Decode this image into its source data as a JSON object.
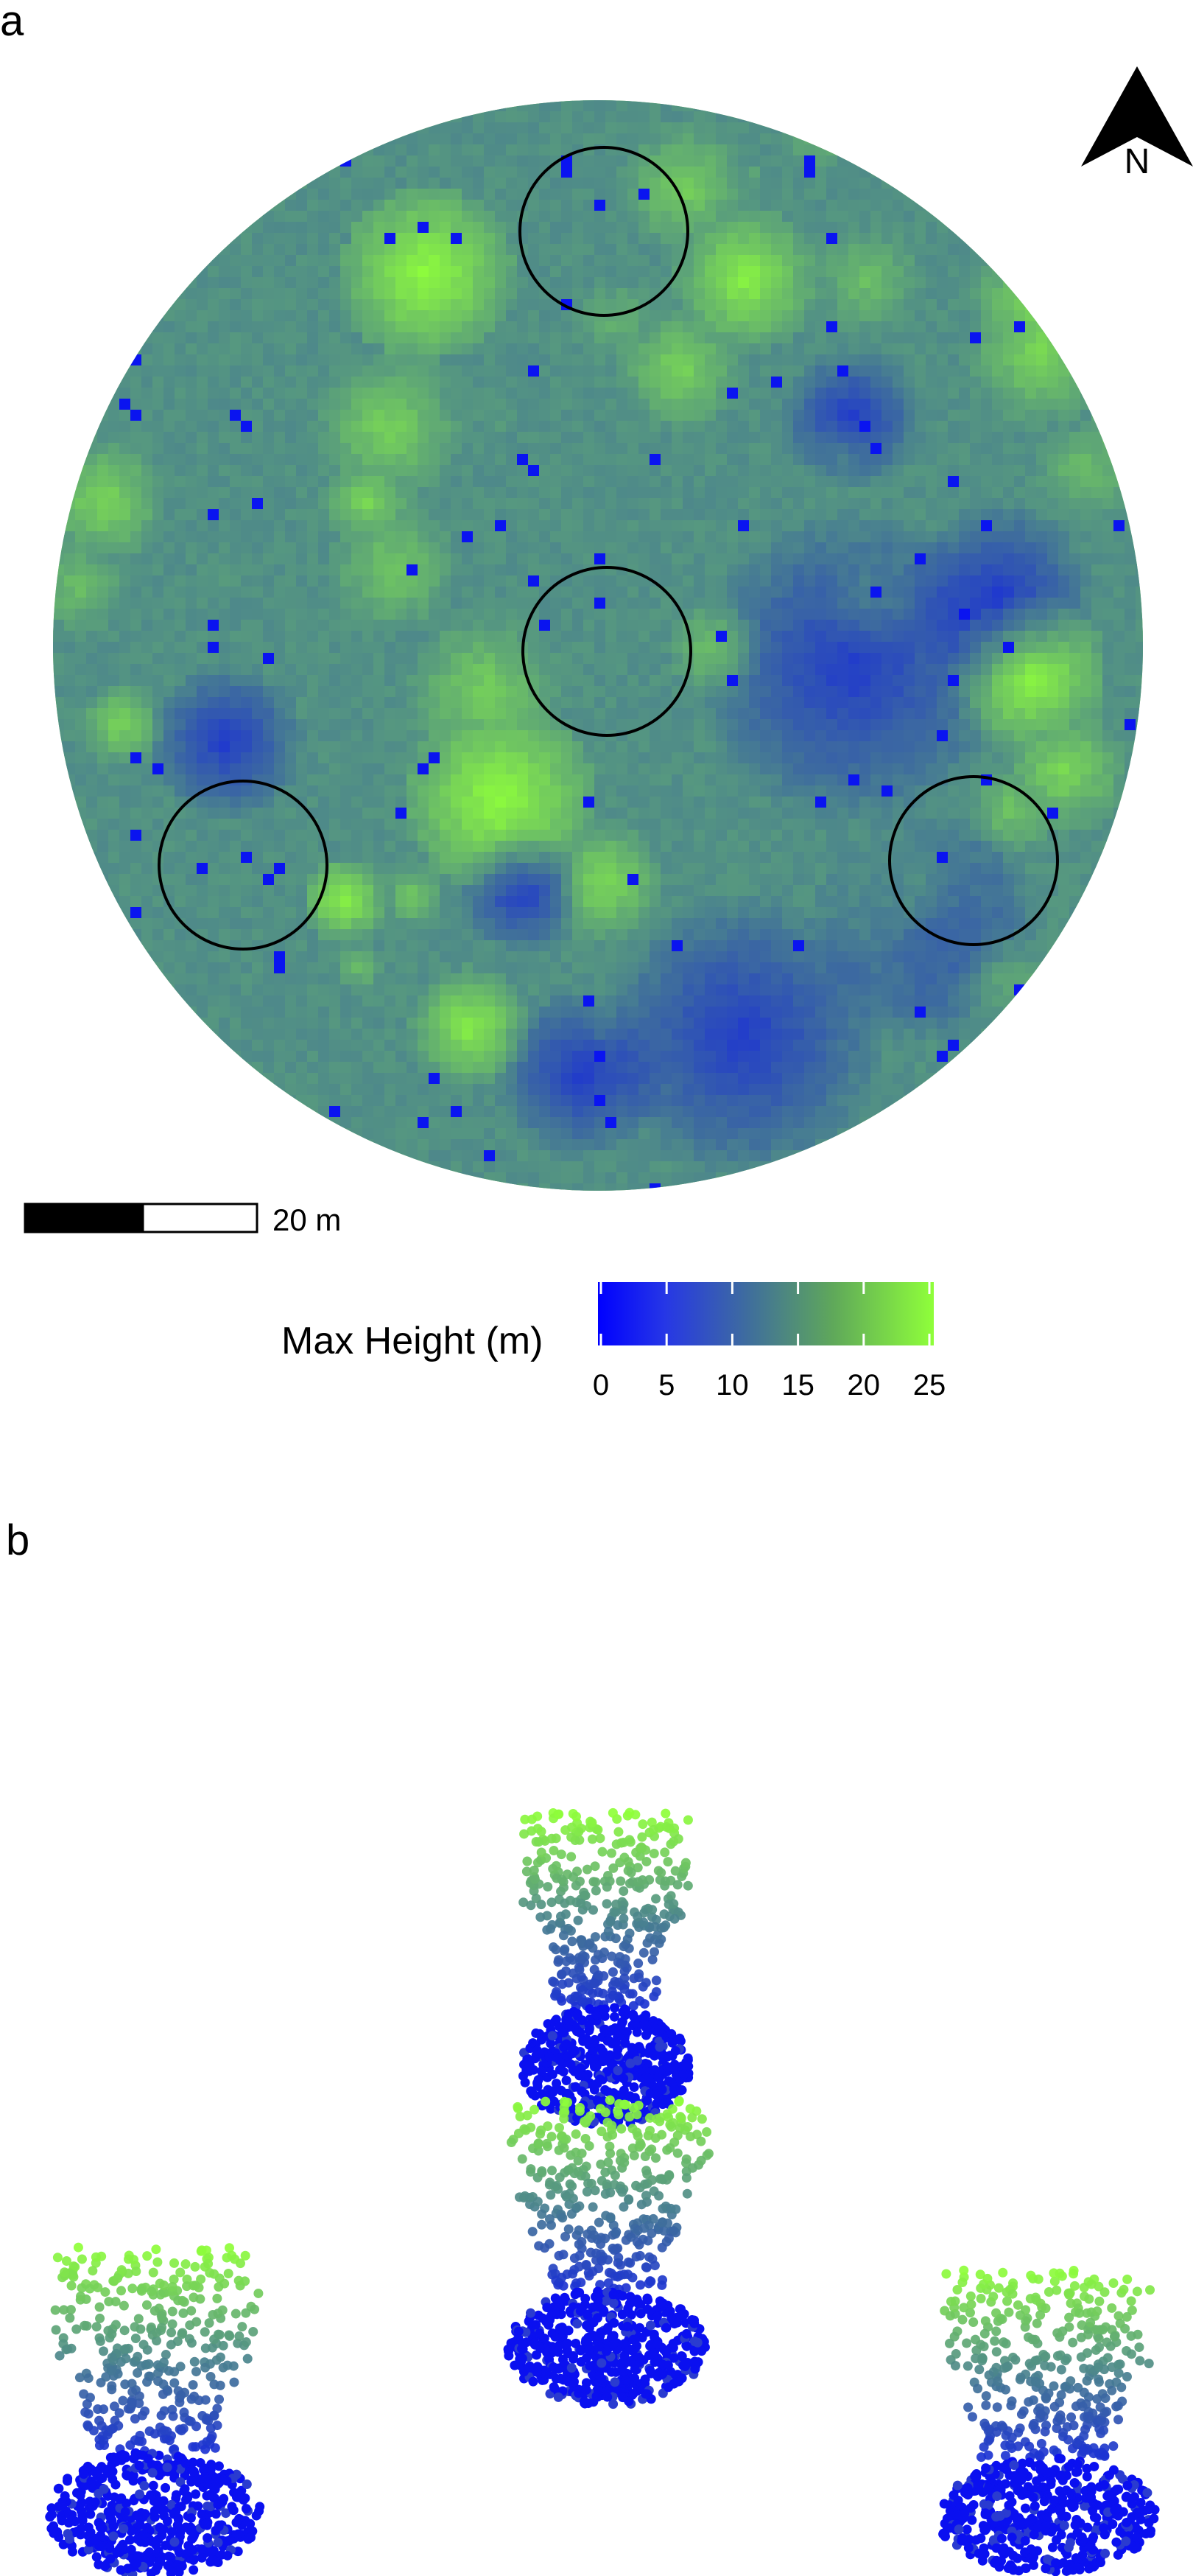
{
  "panels": {
    "a": {
      "label": "a"
    },
    "b": {
      "label": "b"
    }
  },
  "north_arrow": {
    "letter": "N"
  },
  "scale_bar": {
    "label": "20 m"
  },
  "legend": {
    "title": "Max Height (m)",
    "ticks": [
      "0",
      "5",
      "10",
      "15",
      "20",
      "25"
    ],
    "colors": {
      "low": "#0000ff",
      "mid": "#3f6e9c",
      "high": "#8fff3a"
    }
  },
  "colors": {
    "canopy_high": "#8aee3e",
    "canopy_mid": "#5aa75a",
    "ground": "#0a1ee8",
    "circle_stroke": "#000000"
  }
}
